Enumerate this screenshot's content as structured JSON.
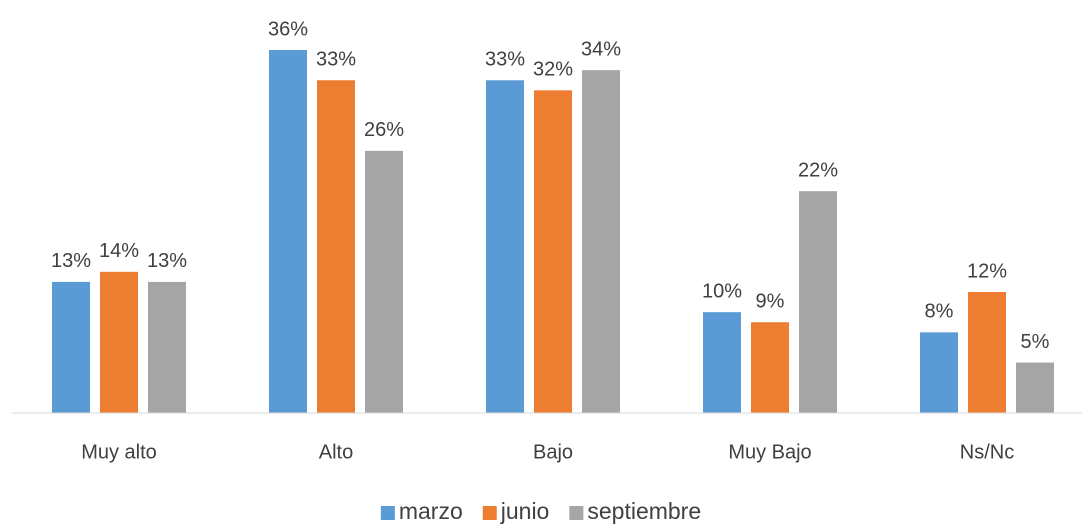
{
  "chart_data": {
    "type": "bar",
    "categories": [
      "Muy alto",
      "Alto",
      "Bajo",
      "Muy Bajo",
      "Ns/Nc"
    ],
    "series": [
      {
        "name": "marzo",
        "color": "#5b9bd5",
        "values": [
          13,
          36,
          33,
          10,
          8
        ],
        "value_labels": [
          "13%",
          "36%",
          "33%",
          "10%",
          "8%"
        ]
      },
      {
        "name": "junio",
        "color": "#ed7d31",
        "values": [
          14,
          33,
          32,
          9,
          12
        ],
        "value_labels": [
          "14%",
          "33%",
          "32%",
          "9%",
          "12%"
        ]
      },
      {
        "name": "septiembre",
        "color": "#a5a5a5",
        "values": [
          13,
          26,
          34,
          22,
          5
        ],
        "value_labels": [
          "13%",
          "26%",
          "34%",
          "22%",
          "5%"
        ]
      }
    ],
    "legend": "bottom"
  }
}
